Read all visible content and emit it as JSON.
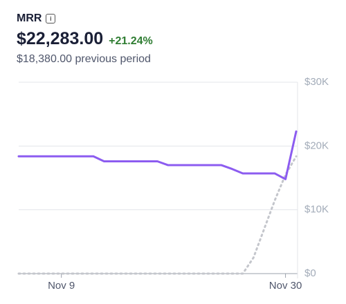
{
  "header": {
    "metric": "MRR",
    "value": "$22,283.00",
    "change": "+21.24%",
    "comparison": "$18,380.00 previous period"
  },
  "chart_data": {
    "type": "line",
    "categories": [
      null,
      null,
      null,
      null,
      "Nov 9",
      null,
      null,
      null,
      null,
      null,
      null,
      null,
      null,
      null,
      null,
      null,
      null,
      null,
      null,
      null,
      null,
      null,
      null,
      null,
      null,
      "Nov 30",
      null
    ],
    "series": [
      {
        "color": "#8c5cf0",
        "dash": false,
        "values": [
          18380,
          18380,
          18380,
          18380,
          18380,
          18380,
          18380,
          18380,
          17600,
          17600,
          17600,
          17600,
          17600,
          17600,
          17000,
          17000,
          17000,
          17000,
          17000,
          17000,
          16400,
          15700,
          15700,
          15700,
          15700,
          14800,
          22283
        ]
      },
      {
        "color": "#c4c6cc",
        "dash": true,
        "values": [
          0,
          0,
          0,
          0,
          0,
          0,
          0,
          0,
          0,
          0,
          0,
          0,
          0,
          0,
          0,
          0,
          0,
          0,
          0,
          0,
          0,
          0,
          2500,
          7000,
          11500,
          15500,
          18380
        ]
      }
    ],
    "ylim": [
      0,
      30000
    ],
    "yticks": [
      {
        "value": 0,
        "label": "$0"
      },
      {
        "value": 10000,
        "label": "$10K"
      },
      {
        "value": 20000,
        "label": "$20K"
      },
      {
        "value": 30000,
        "label": "$30K"
      }
    ],
    "grid": true
  }
}
